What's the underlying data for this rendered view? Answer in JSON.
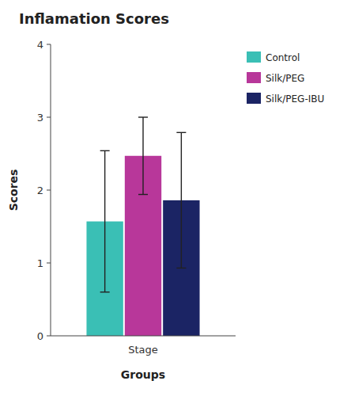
{
  "chart_data": {
    "type": "bar",
    "title": "Inflamation Scores",
    "xlabel": "Groups",
    "ylabel": "Scores",
    "categories": [
      "Stage"
    ],
    "series": [
      {
        "name": "Control",
        "color": "#3ABFB5",
        "values": [
          1.57
        ],
        "errors": [
          0.97
        ]
      },
      {
        "name": "Silk/PEG",
        "color": "#B8379A",
        "values": [
          2.47
        ],
        "errors": [
          0.53
        ]
      },
      {
        "name": "Silk/PEG-IBU",
        "color": "#1B2464",
        "values": [
          1.86
        ],
        "errors": [
          0.93
        ]
      }
    ],
    "ylim": [
      0,
      4
    ],
    "yticks": [
      0,
      1,
      2,
      3,
      4
    ],
    "grid": false,
    "legend": "right"
  }
}
